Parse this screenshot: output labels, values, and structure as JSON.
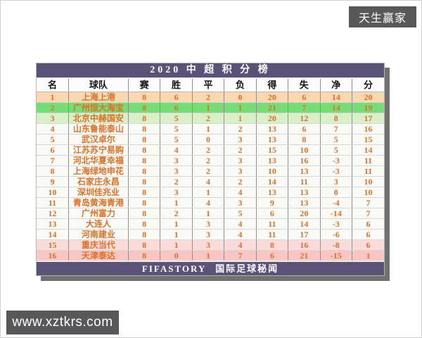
{
  "badge": {
    "label": "天生赢家"
  },
  "watermark": {
    "label": "www.xztkrs.com"
  },
  "chart_data": {
    "type": "table",
    "title": "2020 中 超 积 分 榜",
    "footer": "FIFASTORY  国际足球秘闻",
    "columns": [
      "名",
      "球队",
      "赛",
      "胜",
      "平",
      "负",
      "得",
      "失",
      "净",
      "分"
    ],
    "rows": [
      [
        1,
        "上海上港",
        8,
        6,
        2,
        0,
        20,
        6,
        14,
        20
      ],
      [
        2,
        "广州恒大淘宝",
        8,
        6,
        1,
        1,
        21,
        7,
        14,
        19
      ],
      [
        3,
        "北京中赫国安",
        8,
        5,
        2,
        1,
        20,
        12,
        8,
        17
      ],
      [
        4,
        "山东鲁能泰山",
        8,
        5,
        1,
        2,
        13,
        6,
        7,
        16
      ],
      [
        5,
        "武汉卓尔",
        8,
        5,
        0,
        3,
        13,
        8,
        5,
        15
      ],
      [
        6,
        "江苏苏宁易购",
        8,
        4,
        2,
        2,
        15,
        10,
        5,
        14
      ],
      [
        7,
        "河北华夏幸福",
        8,
        3,
        2,
        3,
        13,
        16,
        -3,
        11
      ],
      [
        8,
        "上海绿地申花",
        8,
        3,
        2,
        3,
        10,
        13,
        -3,
        11
      ],
      [
        9,
        "石家庄永昌",
        8,
        2,
        4,
        2,
        14,
        11,
        3,
        10
      ],
      [
        10,
        "深圳佳兆业",
        8,
        3,
        1,
        4,
        13,
        13,
        0,
        10
      ],
      [
        11,
        "青岛黄海青港",
        8,
        1,
        4,
        3,
        9,
        13,
        -4,
        7
      ],
      [
        12,
        "广州富力",
        8,
        2,
        1,
        5,
        6,
        20,
        -14,
        7
      ],
      [
        13,
        "大连人",
        8,
        1,
        3,
        4,
        11,
        14,
        -3,
        6
      ],
      [
        14,
        "河南建业",
        8,
        1,
        3,
        4,
        11,
        17,
        -6,
        6
      ],
      [
        15,
        "重庆当代",
        8,
        1,
        3,
        4,
        8,
        16,
        -8,
        6
      ],
      [
        16,
        "天津泰达",
        8,
        0,
        1,
        7,
        6,
        21,
        -15,
        1
      ]
    ],
    "row_tones": [
      "peach",
      "green",
      "light_green",
      "white",
      "white",
      "white",
      "white",
      "white",
      "white",
      "white",
      "white",
      "white",
      "white",
      "white",
      "pink_light",
      "pink"
    ]
  },
  "colors": {
    "title_bar": "#5b5278",
    "footer_bar": "#5b5278",
    "badge_bg": "#58585a",
    "watermark_bg": "#58585a",
    "text_orange": "#dd7128",
    "header_text": "#141414",
    "shadow": "#717171",
    "tones": {
      "peach": "#f9d8af",
      "green": "#76dc76",
      "light_green": "#d8efc8",
      "white": "#fafbf7",
      "pink_light": "#fbdcda",
      "pink": "#f9c6c4"
    }
  }
}
